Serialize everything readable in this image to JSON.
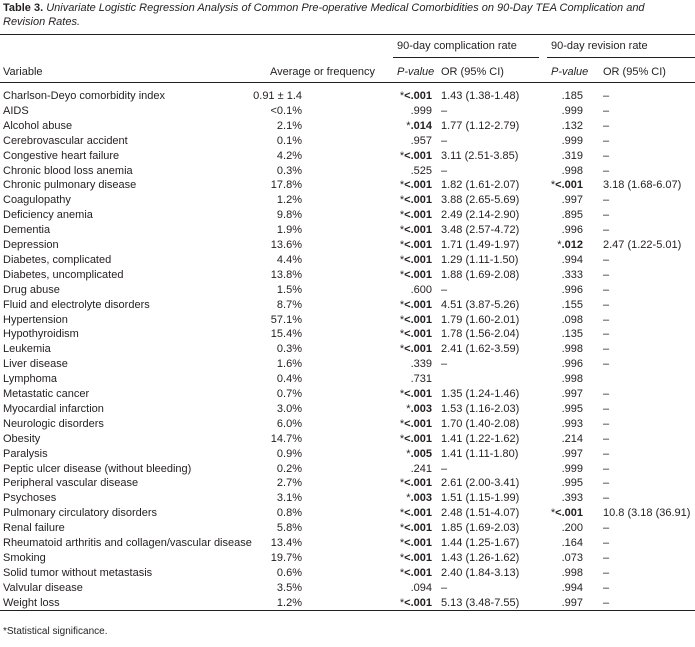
{
  "caption": {
    "label": "Table 3.",
    "text": "Univariate Logistic Regression Analysis of Common Pre-operative Medical Comorbidities on 90-Day TEA Complication and Revision Rates."
  },
  "table": {
    "groups": [
      "90-day complication rate",
      "90-day revision rate"
    ],
    "columns": [
      "Variable",
      "Average or frequency",
      "P-value",
      "OR (95% CI)",
      "P-value",
      "OR (95% CI)"
    ],
    "rows": [
      [
        "Charlson-Deyo comorbidity index",
        "0.91 ± 1.4",
        "*<.001",
        "1.43 (1.38-1.48)",
        ".185",
        "–"
      ],
      [
        "AIDS",
        "<0.1%",
        ".999",
        "–",
        ".999",
        "–"
      ],
      [
        "Alcohol abuse",
        "2.1%",
        "*.014",
        "1.77 (1.12-2.79)",
        ".132",
        "–"
      ],
      [
        "Cerebrovascular accident",
        "0.1%",
        ".957",
        "–",
        ".999",
        "–"
      ],
      [
        "Congestive heart failure",
        "4.2%",
        "*<.001",
        "3.11 (2.51-3.85)",
        ".319",
        "–"
      ],
      [
        "Chronic blood loss anemia",
        "0.3%",
        ".525",
        "–",
        ".998",
        "–"
      ],
      [
        "Chronic pulmonary disease",
        "17.8%",
        "*<.001",
        "1.82 (1.61-2.07)",
        "*<.001",
        "3.18 (1.68-6.07)"
      ],
      [
        "Coagulopathy",
        "1.2%",
        "*<.001",
        "3.88 (2.65-5.69)",
        ".997",
        "–"
      ],
      [
        "Deficiency anemia",
        "9.8%",
        "*<.001",
        "2.49 (2.14-2.90)",
        ".895",
        "–"
      ],
      [
        "Dementia",
        "1.9%",
        "*<.001",
        "3.48 (2.57-4.72)",
        ".996",
        "–"
      ],
      [
        "Depression",
        "13.6%",
        "*<.001",
        "1.71 (1.49-1.97)",
        "*.012",
        "2.47 (1.22-5.01)"
      ],
      [
        "Diabetes, complicated",
        "4.4%",
        "*<.001",
        "1.29 (1.11-1.50)",
        ".994",
        "–"
      ],
      [
        "Diabetes, uncomplicated",
        "13.8%",
        "*<.001",
        "1.88 (1.69-2.08)",
        ".333",
        "–"
      ],
      [
        "Drug abuse",
        "1.5%",
        ".600",
        "–",
        ".996",
        "–"
      ],
      [
        "Fluid and electrolyte disorders",
        "8.7%",
        "*<.001",
        "4.51 (3.87-5.26)",
        ".155",
        "–"
      ],
      [
        "Hypertension",
        "57.1%",
        "*<.001",
        "1.79 (1.60-2.01)",
        ".098",
        "–"
      ],
      [
        "Hypothyroidism",
        "15.4%",
        "*<.001",
        "1.78 (1.56-2.04)",
        ".135",
        "–"
      ],
      [
        "Leukemia",
        "0.3%",
        "*<.001",
        "2.41 (1.62-3.59)",
        ".998",
        "–"
      ],
      [
        "Liver disease",
        "1.6%",
        ".339",
        "–",
        ".996",
        "–"
      ],
      [
        "Lymphoma",
        "0.4%",
        ".731",
        null,
        ".998",
        null
      ],
      [
        "Metastatic cancer",
        "0.7%",
        "*<.001",
        "1.35 (1.24-1.46)",
        ".997",
        "–"
      ],
      [
        "Myocardial infarction",
        "3.0%",
        "*.003",
        "1.53 (1.16-2.03)",
        ".995",
        "–"
      ],
      [
        "Neurologic disorders",
        "6.0%",
        "*<.001",
        "1.70 (1.40-2.08)",
        ".993",
        "–"
      ],
      [
        "Obesity",
        "14.7%",
        "*<.001",
        "1.41 (1.22-1.62)",
        ".214",
        "–"
      ],
      [
        "Paralysis",
        "0.9%",
        "*.005",
        "1.41 (1.11-1.80)",
        ".997",
        "–"
      ],
      [
        "Peptic ulcer disease (without bleeding)",
        "0.2%",
        ".241",
        "–",
        ".999",
        "–"
      ],
      [
        "Peripheral vascular disease",
        "2.7%",
        "*<.001",
        "2.61 (2.00-3.41)",
        ".995",
        "–"
      ],
      [
        "Psychoses",
        "3.1%",
        "*.003",
        "1.51 (1.15-1.99)",
        ".393",
        "–"
      ],
      [
        "Pulmonary circulatory disorders",
        "0.8%",
        "*<.001",
        "2.48 (1.51-4.07)",
        "*<.001",
        "10.8 (3.18 (36.91)"
      ],
      [
        "Renal failure",
        "5.8%",
        "*<.001",
        "1.85 (1.69-2.03)",
        ".200",
        "–"
      ],
      [
        "Rheumatoid arthritis and collagen/vascular disease",
        "13.4%",
        "*<.001",
        "1.44 (1.25-1.67)",
        ".164",
        "–"
      ],
      [
        "Smoking",
        "19.7%",
        "*<.001",
        "1.43 (1.26-1.62)",
        ".073",
        "–"
      ],
      [
        "Solid tumor without metastasis",
        "0.6%",
        "*<.001",
        "2.40 (1.84-3.13)",
        ".998",
        "–"
      ],
      [
        "Valvular disease",
        "3.5%",
        ".094",
        "–",
        ".994",
        "–"
      ],
      [
        "Weight loss",
        "1.2%",
        "*<.001",
        "5.13 (3.48-7.55)",
        ".997",
        "–"
      ]
    ]
  },
  "footnote": "*Statistical significance."
}
